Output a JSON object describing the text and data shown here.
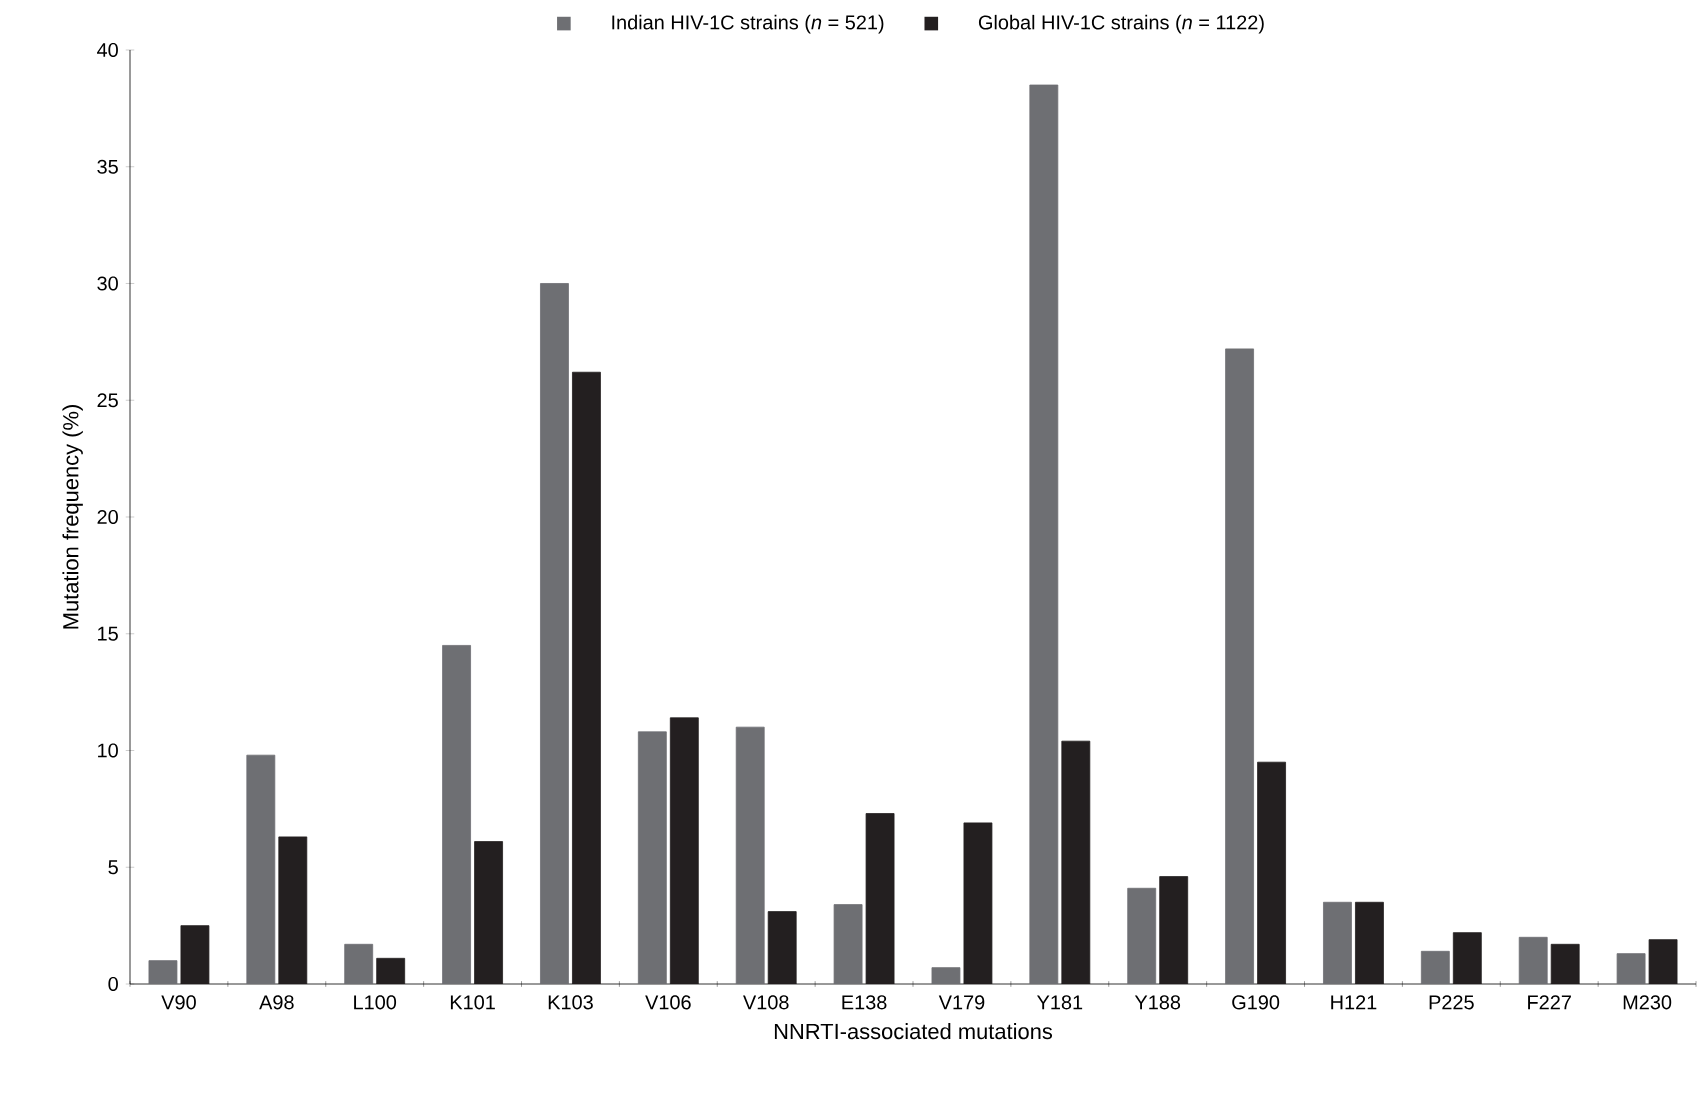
{
  "chart_data": {
    "type": "bar",
    "xlabel": "NNRTI-associated mutations",
    "ylabel": "Mutation frequency (%)",
    "categories": [
      "V90",
      "A98",
      "L100",
      "K101",
      "K103",
      "V106",
      "V108",
      "E138",
      "V179",
      "Y181",
      "Y188",
      "G190",
      "H121",
      "P225",
      "F227",
      "M230"
    ],
    "series": [
      {
        "name": "Indian HIV-1C strains (*n* = 521)",
        "color": "#6e6f73",
        "values": [
          1.0,
          9.8,
          1.7,
          14.5,
          30.0,
          10.8,
          11.0,
          3.4,
          0.7,
          38.5,
          4.1,
          27.2,
          3.5,
          1.4,
          2.0,
          1.3
        ]
      },
      {
        "name": "Global HIV-1C strains (*n* = 1122)",
        "color": "#231f20",
        "values": [
          2.5,
          6.3,
          1.1,
          6.1,
          26.2,
          11.4,
          3.1,
          7.3,
          6.9,
          10.4,
          4.6,
          9.5,
          3.5,
          2.2,
          1.7,
          1.9
        ]
      }
    ],
    "ylim": [
      0,
      40
    ],
    "yticks": [
      0,
      5,
      10,
      15,
      20,
      25,
      30,
      35,
      40
    ],
    "legend": "top",
    "grid": false
  }
}
